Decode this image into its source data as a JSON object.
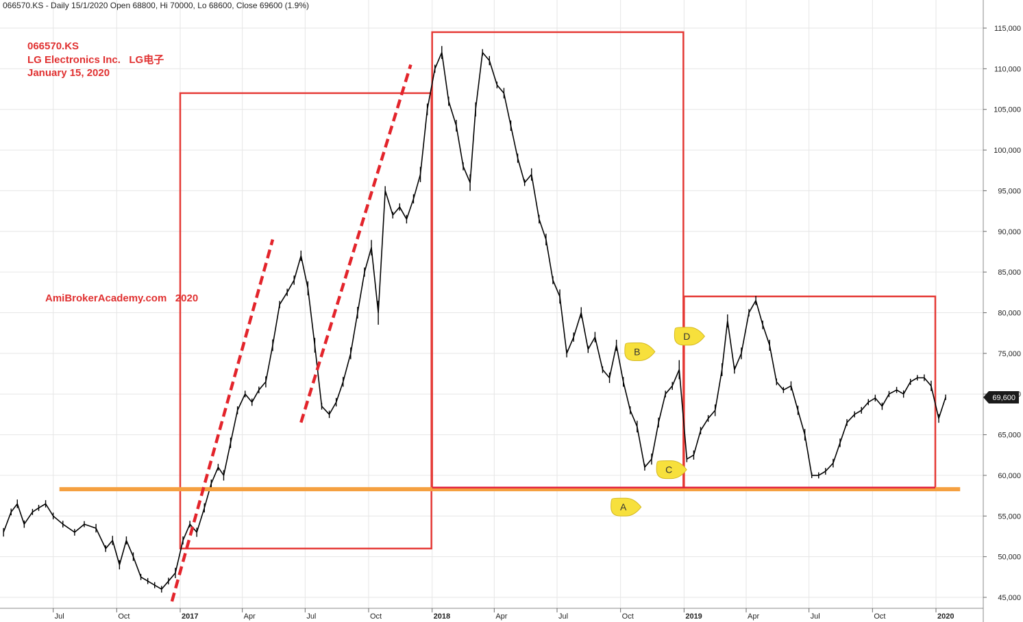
{
  "header": {
    "text": "066570.KS - Daily 15/1/2020 Open 68800, Hi 70000, Lo 68600, Close 69600 (1.9%)"
  },
  "annotations": {
    "ticker": "066570.KS",
    "company": "LG Electronics Inc.   LG电子",
    "date": "January 15, 2020",
    "watermark": "AmiBrokerAcademy.com   2020"
  },
  "colors": {
    "annotation_red": "#e03030",
    "box_red": "#e53935",
    "support_orange": "#f5a040",
    "support_base_red": "#e0203a",
    "trend_red": "#e3242b",
    "price_black": "#000000",
    "marker_yellow": "#f7e03c",
    "last_price_bg": "#1a1a1a",
    "grid": "#e6e6e6"
  },
  "chart_data": {
    "type": "line",
    "title": "066570.KS",
    "xlabel": "",
    "ylabel": "",
    "ylim": [
      44000,
      117500
    ],
    "y_ticks": [
      45000,
      50000,
      55000,
      60000,
      65000,
      70000,
      75000,
      80000,
      85000,
      90000,
      95000,
      100000,
      105000,
      110000,
      115000
    ],
    "y_tick_labels": [
      "45,000",
      "50,000",
      "55,000",
      "60,000",
      "65,000",
      "70,000",
      "75,000",
      "80,000",
      "85,000",
      "90,000",
      "95,000",
      "100,000",
      "105,000",
      "110,000",
      "115,000"
    ],
    "x_ticks": [
      {
        "label": "Jul",
        "date": "2016-07-01",
        "bold": false
      },
      {
        "label": "Oct",
        "date": "2016-10-01",
        "bold": false
      },
      {
        "label": "2017",
        "date": "2017-01-01",
        "bold": true
      },
      {
        "label": "Apr",
        "date": "2017-04-01",
        "bold": false
      },
      {
        "label": "Jul",
        "date": "2017-07-01",
        "bold": false
      },
      {
        "label": "Oct",
        "date": "2017-10-01",
        "bold": false
      },
      {
        "label": "2018",
        "date": "2018-01-01",
        "bold": true
      },
      {
        "label": "Apr",
        "date": "2018-04-01",
        "bold": false
      },
      {
        "label": "Jul",
        "date": "2018-07-01",
        "bold": false
      },
      {
        "label": "Oct",
        "date": "2018-10-01",
        "bold": false
      },
      {
        "label": "2019",
        "date": "2019-01-01",
        "bold": true
      },
      {
        "label": "Apr",
        "date": "2019-04-01",
        "bold": false
      },
      {
        "label": "Jul",
        "date": "2019-07-01",
        "bold": false
      },
      {
        "label": "Oct",
        "date": "2019-10-01",
        "bold": false
      },
      {
        "label": "2020",
        "date": "2020-01-01",
        "bold": true
      }
    ],
    "xlim": [
      "2016-04-20",
      "2020-02-10"
    ],
    "grid": true,
    "series": [
      {
        "name": "",
        "x": [
          "2016-04-20",
          "2016-05-01",
          "2016-05-10",
          "2016-05-20",
          "2016-06-01",
          "2016-06-10",
          "2016-06-20",
          "2016-07-01",
          "2016-07-15",
          "2016-08-01",
          "2016-08-15",
          "2016-09-01",
          "2016-09-15",
          "2016-09-25",
          "2016-10-05",
          "2016-10-15",
          "2016-10-25",
          "2016-11-05",
          "2016-11-15",
          "2016-11-25",
          "2016-12-05",
          "2016-12-15",
          "2016-12-25",
          "2017-01-05",
          "2017-01-15",
          "2017-01-25",
          "2017-02-05",
          "2017-02-15",
          "2017-02-25",
          "2017-03-05",
          "2017-03-15",
          "2017-03-25",
          "2017-04-05",
          "2017-04-15",
          "2017-04-25",
          "2017-05-05",
          "2017-05-15",
          "2017-05-25",
          "2017-06-05",
          "2017-06-15",
          "2017-06-25",
          "2017-07-05",
          "2017-07-15",
          "2017-07-25",
          "2017-08-05",
          "2017-08-15",
          "2017-08-25",
          "2017-09-05",
          "2017-09-15",
          "2017-09-25",
          "2017-10-05",
          "2017-10-15",
          "2017-10-25",
          "2017-11-05",
          "2017-11-15",
          "2017-11-25",
          "2017-12-05",
          "2017-12-15",
          "2017-12-25",
          "2018-01-05",
          "2018-01-15",
          "2018-01-25",
          "2018-02-05",
          "2018-02-15",
          "2018-02-25",
          "2018-03-05",
          "2018-03-15",
          "2018-03-25",
          "2018-04-05",
          "2018-04-15",
          "2018-04-25",
          "2018-05-05",
          "2018-05-15",
          "2018-05-25",
          "2018-06-05",
          "2018-06-15",
          "2018-06-25",
          "2018-07-05",
          "2018-07-15",
          "2018-07-25",
          "2018-08-05",
          "2018-08-15",
          "2018-08-25",
          "2018-09-05",
          "2018-09-15",
          "2018-09-25",
          "2018-10-05",
          "2018-10-15",
          "2018-10-25",
          "2018-11-05",
          "2018-11-15",
          "2018-11-25",
          "2018-12-05",
          "2018-12-15",
          "2018-12-25",
          "2019-01-05",
          "2019-01-15",
          "2019-01-25",
          "2019-02-05",
          "2019-02-15",
          "2019-02-25",
          "2019-03-05",
          "2019-03-15",
          "2019-03-25",
          "2019-04-05",
          "2019-04-15",
          "2019-04-25",
          "2019-05-05",
          "2019-05-15",
          "2019-05-25",
          "2019-06-05",
          "2019-06-15",
          "2019-06-25",
          "2019-07-05",
          "2019-07-15",
          "2019-07-25",
          "2019-08-05",
          "2019-08-15",
          "2019-08-25",
          "2019-09-05",
          "2019-09-15",
          "2019-09-25",
          "2019-10-05",
          "2019-10-15",
          "2019-10-25",
          "2019-11-05",
          "2019-11-15",
          "2019-11-25",
          "2019-12-05",
          "2019-12-15",
          "2019-12-25",
          "2020-01-05",
          "2020-01-15"
        ],
        "y": [
          53000,
          55500,
          56500,
          54000,
          55500,
          56000,
          56500,
          55000,
          54000,
          53000,
          54000,
          53500,
          51000,
          52000,
          49000,
          52000,
          50000,
          47500,
          47000,
          46500,
          46000,
          47000,
          48000,
          52000,
          54000,
          53000,
          56000,
          59000,
          61000,
          60000,
          64000,
          68000,
          70000,
          69000,
          70500,
          71500,
          76000,
          81000,
          82500,
          84000,
          87000,
          83000,
          76000,
          68500,
          67500,
          69000,
          71500,
          75000,
          80000,
          85000,
          88000,
          80000,
          95000,
          92000,
          93000,
          91500,
          94000,
          97000,
          105000,
          110000,
          112000,
          106000,
          103000,
          98000,
          96000,
          105000,
          112000,
          111000,
          108000,
          107000,
          103000,
          99000,
          96000,
          97000,
          91500,
          89000,
          84000,
          82000,
          75000,
          77000,
          80000,
          75500,
          77000,
          73000,
          72000,
          76000,
          71500,
          68000,
          66000,
          61000,
          62000,
          66500,
          70000,
          71000,
          73000,
          62000,
          62500,
          65500,
          67000,
          68000,
          73000,
          79000,
          73000,
          75000,
          80000,
          81500,
          78500,
          76000,
          71500,
          70500,
          71000,
          68000,
          65000,
          60000,
          60000,
          60500,
          61500,
          64000,
          66500,
          67500,
          68000,
          69000,
          69500,
          68500,
          70000,
          70500,
          70000,
          71500,
          72000,
          72000,
          71000,
          67000,
          69600
        ]
      }
    ],
    "overlays": {
      "boxes": [
        {
          "from": "2017-01-01",
          "to": "2017-12-31",
          "low": 51000,
          "high": 107000
        },
        {
          "from": "2018-01-01",
          "to": "2018-12-31",
          "low": 58500,
          "high": 114500
        },
        {
          "from": "2019-01-01",
          "to": "2019-12-31",
          "low": 58500,
          "high": 82000
        }
      ],
      "support_line": {
        "from": "2016-07-10",
        "to": "2020-02-05",
        "value": 58300
      },
      "trendlines": [
        {
          "from": [
            "2016-12-20",
            44500
          ],
          "to": [
            "2017-05-15",
            89000
          ]
        },
        {
          "from": [
            "2017-06-25",
            66500
          ],
          "to": [
            "2017-12-01",
            110500
          ]
        }
      ],
      "markers": [
        {
          "label": "A",
          "date": "2018-10-05",
          "value": 56100
        },
        {
          "label": "B",
          "date": "2018-10-25",
          "value": 75200
        },
        {
          "label": "C",
          "date": "2018-12-10",
          "value": 60700
        },
        {
          "label": "D",
          "date": "2019-01-05",
          "value": 77100
        }
      ],
      "last_price": {
        "label": "69,600",
        "value": 69600
      }
    }
  }
}
